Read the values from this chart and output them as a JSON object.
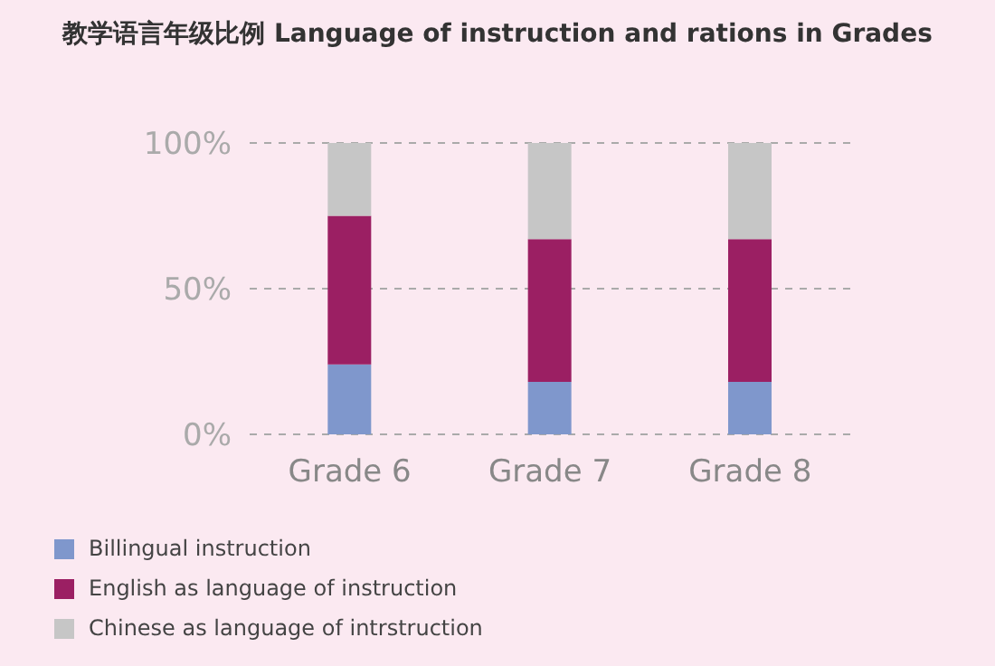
{
  "chart_data": {
    "type": "bar",
    "title": "教学语言年级比例  Language of instruction and rations in Grades",
    "categories": [
      "Grade 6",
      "Grade 7",
      "Grade 8"
    ],
    "stacked": true,
    "series": [
      {
        "name": "Billingual instruction",
        "color": "#7f97cc",
        "values": [
          24,
          18,
          18
        ]
      },
      {
        "name": "English as language of instruction",
        "color": "#9b1f63",
        "values": [
          51,
          49,
          49
        ]
      },
      {
        "name": "Chinese as language of intrstruction",
        "color": "#c6c6c6",
        "values": [
          25,
          33,
          33
        ]
      }
    ],
    "ylim": [
      0,
      100
    ],
    "yticks": [
      {
        "value": 0,
        "label": "0%"
      },
      {
        "value": 50,
        "label": "50%"
      },
      {
        "value": 100,
        "label": "100%"
      }
    ],
    "grid": "y",
    "legend": "bottom left"
  }
}
